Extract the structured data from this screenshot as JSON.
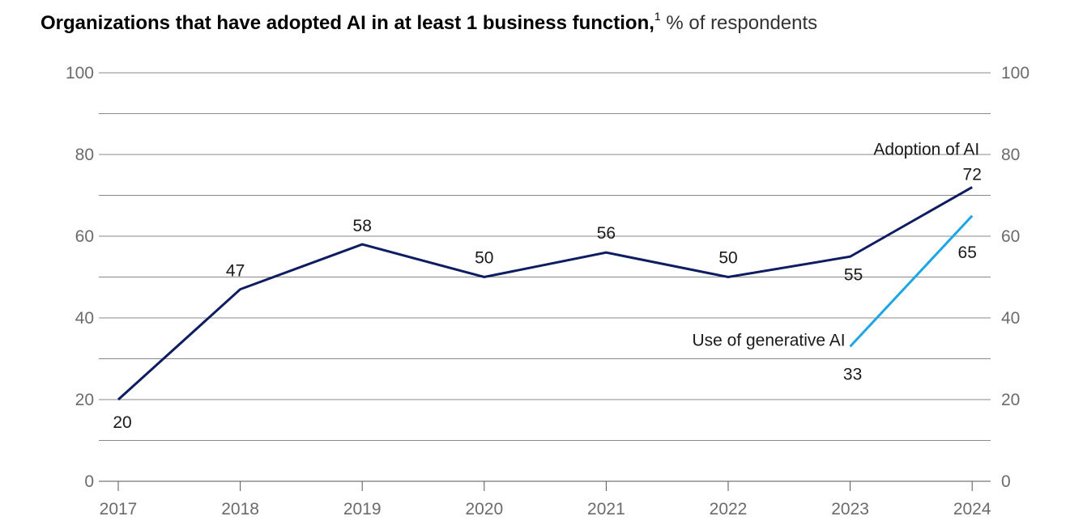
{
  "title": {
    "main": "Organizations that have adopted AI in at least 1 business function,",
    "footnote": "1",
    "subtitle": "% of respondents"
  },
  "chart_data": {
    "type": "line",
    "title": "Organizations that have adopted AI in at least 1 business function, % of respondents",
    "xlabel": "",
    "ylabel": "",
    "ylim": [
      0,
      100
    ],
    "y_ticks": [
      0,
      20,
      40,
      60,
      80,
      100
    ],
    "grid": true,
    "categories": [
      "2017",
      "2018",
      "2019",
      "2020",
      "2021",
      "2022",
      "2023",
      "2024"
    ],
    "series": [
      {
        "name": "Adoption of AI",
        "color": "#0e1c61",
        "values": [
          20,
          47,
          58,
          50,
          56,
          50,
          55,
          72
        ]
      },
      {
        "name": "Use of generative AI",
        "color": "#1ea5e6",
        "values": [
          null,
          null,
          null,
          null,
          null,
          null,
          33,
          65
        ]
      }
    ]
  }
}
